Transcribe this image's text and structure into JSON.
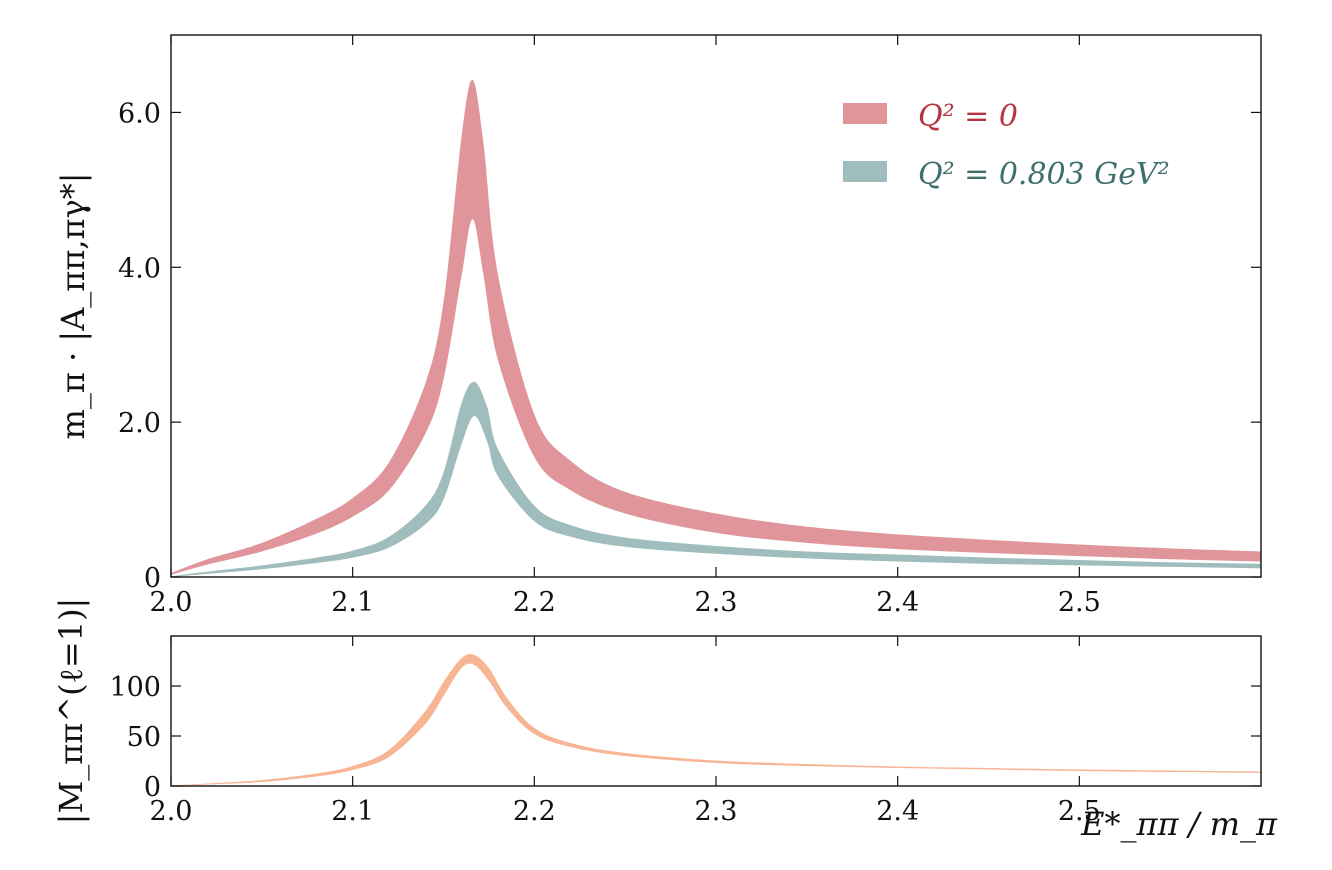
{
  "chart_data": [
    {
      "type": "area",
      "xlabel": "",
      "ylabel": "m_π · |A_ππ,πγ*|",
      "xlim": [
        2.0,
        2.6
      ],
      "ylim": [
        0,
        7.0
      ],
      "x_ticks": [
        2.0,
        2.1,
        2.2,
        2.3,
        2.4,
        2.5
      ],
      "x_tick_labels": [
        "2.0",
        "2.1",
        "2.2",
        "2.3",
        "2.4",
        "2.5"
      ],
      "y_ticks": [
        0,
        2.0,
        4.0,
        6.0
      ],
      "y_tick_labels": [
        "0",
        "2.0",
        "4.0",
        "6.0"
      ],
      "legend_position": "top-right",
      "grid": false,
      "series": [
        {
          "name": "Q² = 0",
          "color": "#e0959a",
          "text_color": "#b5343f",
          "x": [
            2.0,
            2.02,
            2.05,
            2.08,
            2.1,
            2.12,
            2.14,
            2.15,
            2.16,
            2.166,
            2.172,
            2.18,
            2.2,
            2.22,
            2.25,
            2.3,
            2.35,
            2.4,
            2.45,
            2.5,
            2.55,
            2.6
          ],
          "lower": [
            0.03,
            0.16,
            0.33,
            0.56,
            0.78,
            1.12,
            1.85,
            2.55,
            3.9,
            4.62,
            3.9,
            2.8,
            1.55,
            1.12,
            0.82,
            0.57,
            0.44,
            0.36,
            0.31,
            0.27,
            0.23,
            0.2
          ],
          "upper": [
            0.05,
            0.23,
            0.44,
            0.75,
            1.02,
            1.48,
            2.5,
            3.55,
            5.7,
            6.42,
            5.6,
            3.9,
            2.1,
            1.5,
            1.1,
            0.82,
            0.65,
            0.55,
            0.48,
            0.42,
            0.37,
            0.33
          ]
        },
        {
          "name": "Q² = 0.803 GeV²",
          "color": "#9ebdbc",
          "text_color": "#3f6f6d",
          "x": [
            2.0,
            2.02,
            2.05,
            2.08,
            2.1,
            2.12,
            2.14,
            2.15,
            2.16,
            2.167,
            2.174,
            2.18,
            2.2,
            2.22,
            2.25,
            2.3,
            2.35,
            2.4,
            2.45,
            2.5,
            2.55,
            2.6
          ],
          "lower": [
            0.0,
            0.04,
            0.1,
            0.18,
            0.25,
            0.38,
            0.68,
            1.0,
            1.72,
            2.08,
            1.75,
            1.3,
            0.72,
            0.52,
            0.39,
            0.3,
            0.24,
            0.2,
            0.17,
            0.15,
            0.13,
            0.11
          ],
          "upper": [
            0.01,
            0.07,
            0.15,
            0.25,
            0.34,
            0.52,
            0.92,
            1.35,
            2.25,
            2.52,
            2.2,
            1.65,
            0.92,
            0.67,
            0.51,
            0.4,
            0.33,
            0.29,
            0.25,
            0.22,
            0.19,
            0.17
          ]
        }
      ]
    },
    {
      "type": "area",
      "xlabel": "E*_ππ / m_π",
      "ylabel": "|M_ππ^(ℓ=1)|",
      "xlim": [
        2.0,
        2.6
      ],
      "ylim": [
        0,
        150
      ],
      "x_ticks": [
        2.0,
        2.1,
        2.2,
        2.3,
        2.4,
        2.5
      ],
      "x_tick_labels": [
        "2.0",
        "2.1",
        "2.2",
        "2.3",
        "2.4",
        "2.5"
      ],
      "y_ticks": [
        0,
        50,
        100
      ],
      "y_tick_labels": [
        "0",
        "50",
        "100"
      ],
      "grid": false,
      "series": [
        {
          "color": "#f8b594",
          "x": [
            2.0,
            2.02,
            2.05,
            2.08,
            2.1,
            2.12,
            2.14,
            2.15,
            2.16,
            2.167,
            2.175,
            2.185,
            2.2,
            2.22,
            2.25,
            2.3,
            2.35,
            2.4,
            2.45,
            2.5,
            2.55,
            2.6
          ],
          "lower": [
            0.0,
            1.5,
            4.0,
            9.5,
            16.0,
            29.0,
            62.0,
            90.0,
            118.0,
            121.0,
            105.0,
            78.0,
            52.0,
            39.0,
            30.0,
            23.0,
            20.0,
            18.0,
            16.5,
            15.0,
            14.0,
            13.0
          ],
          "upper": [
            0.5,
            2.5,
            6.0,
            12.5,
            20.0,
            36.0,
            75.0,
            104.0,
            128.0,
            131.0,
            118.0,
            88.0,
            58.0,
            43.0,
            33.0,
            25.5,
            22.0,
            19.5,
            18.0,
            16.5,
            15.5,
            14.5
          ]
        }
      ]
    }
  ]
}
